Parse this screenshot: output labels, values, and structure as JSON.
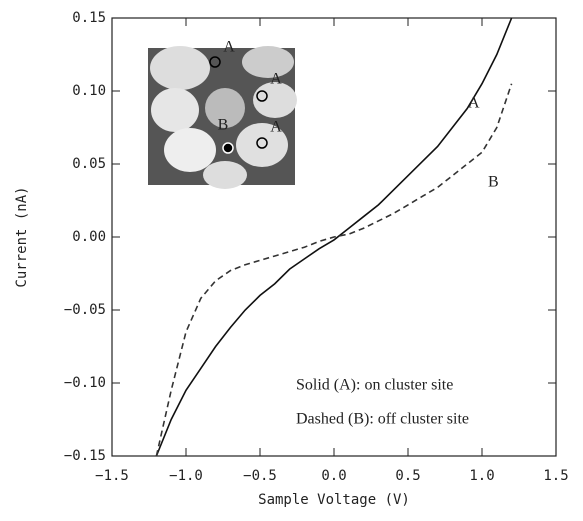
{
  "chart_data": {
    "type": "line",
    "xlabel": "Sample Voltage (V)",
    "ylabel": "Current (nA)",
    "x": [
      -1.2,
      -1.1,
      -1.0,
      -0.9,
      -0.8,
      -0.7,
      -0.6,
      -0.5,
      -0.4,
      -0.3,
      -0.2,
      -0.1,
      0.0,
      0.1,
      0.2,
      0.3,
      0.4,
      0.5,
      0.6,
      0.7,
      0.8,
      0.9,
      1.0,
      1.1,
      1.2
    ],
    "series": [
      {
        "name": "A",
        "color": "#111111",
        "dashed": false,
        "values": [
          -0.15,
          -0.125,
          -0.105,
          -0.09,
          -0.075,
          -0.062,
          -0.05,
          -0.04,
          -0.032,
          -0.022,
          -0.015,
          -0.008,
          -0.002,
          0.006,
          0.014,
          0.022,
          0.032,
          0.042,
          0.052,
          0.062,
          0.075,
          0.088,
          0.105,
          0.125,
          0.15
        ]
      },
      {
        "name": "B",
        "color": "#333333",
        "dashed": true,
        "values": [
          -0.15,
          -0.105,
          -0.065,
          -0.042,
          -0.03,
          -0.023,
          -0.019,
          -0.016,
          -0.013,
          -0.01,
          -0.007,
          -0.003,
          0.0,
          0.002,
          0.006,
          0.011,
          0.016,
          0.022,
          0.028,
          0.034,
          0.042,
          0.05,
          0.058,
          0.075,
          0.105
        ]
      }
    ],
    "xlim": [
      -1.5,
      1.5
    ],
    "xticks": [
      {
        "value": -1.5,
        "label": "−1.5"
      },
      {
        "value": -1.0,
        "label": "−1.0"
      },
      {
        "value": -0.5,
        "label": "−0.5"
      },
      {
        "value": 0,
        "label": "0.0"
      },
      0.5,
      {
        "value": 1,
        "label": "1.0"
      },
      1.5
    ],
    "ylim": [
      -0.15,
      0.15
    ],
    "yticks": [
      {
        "value": -0.15,
        "label": "−0.15"
      },
      {
        "value": -0.1,
        "label": "−0.10"
      },
      {
        "value": -0.05,
        "label": "−0.05"
      },
      {
        "value": 0,
        "label": "0.00"
      },
      0.05,
      {
        "value": 0.1,
        "label": "0.10"
      },
      0.15
    ],
    "grid": false,
    "annotations": [
      "Solid (A): on cluster site",
      "Dashed (B): off cluster site"
    ],
    "inset_labels": [
      "A",
      "A",
      "B",
      "A"
    ]
  }
}
